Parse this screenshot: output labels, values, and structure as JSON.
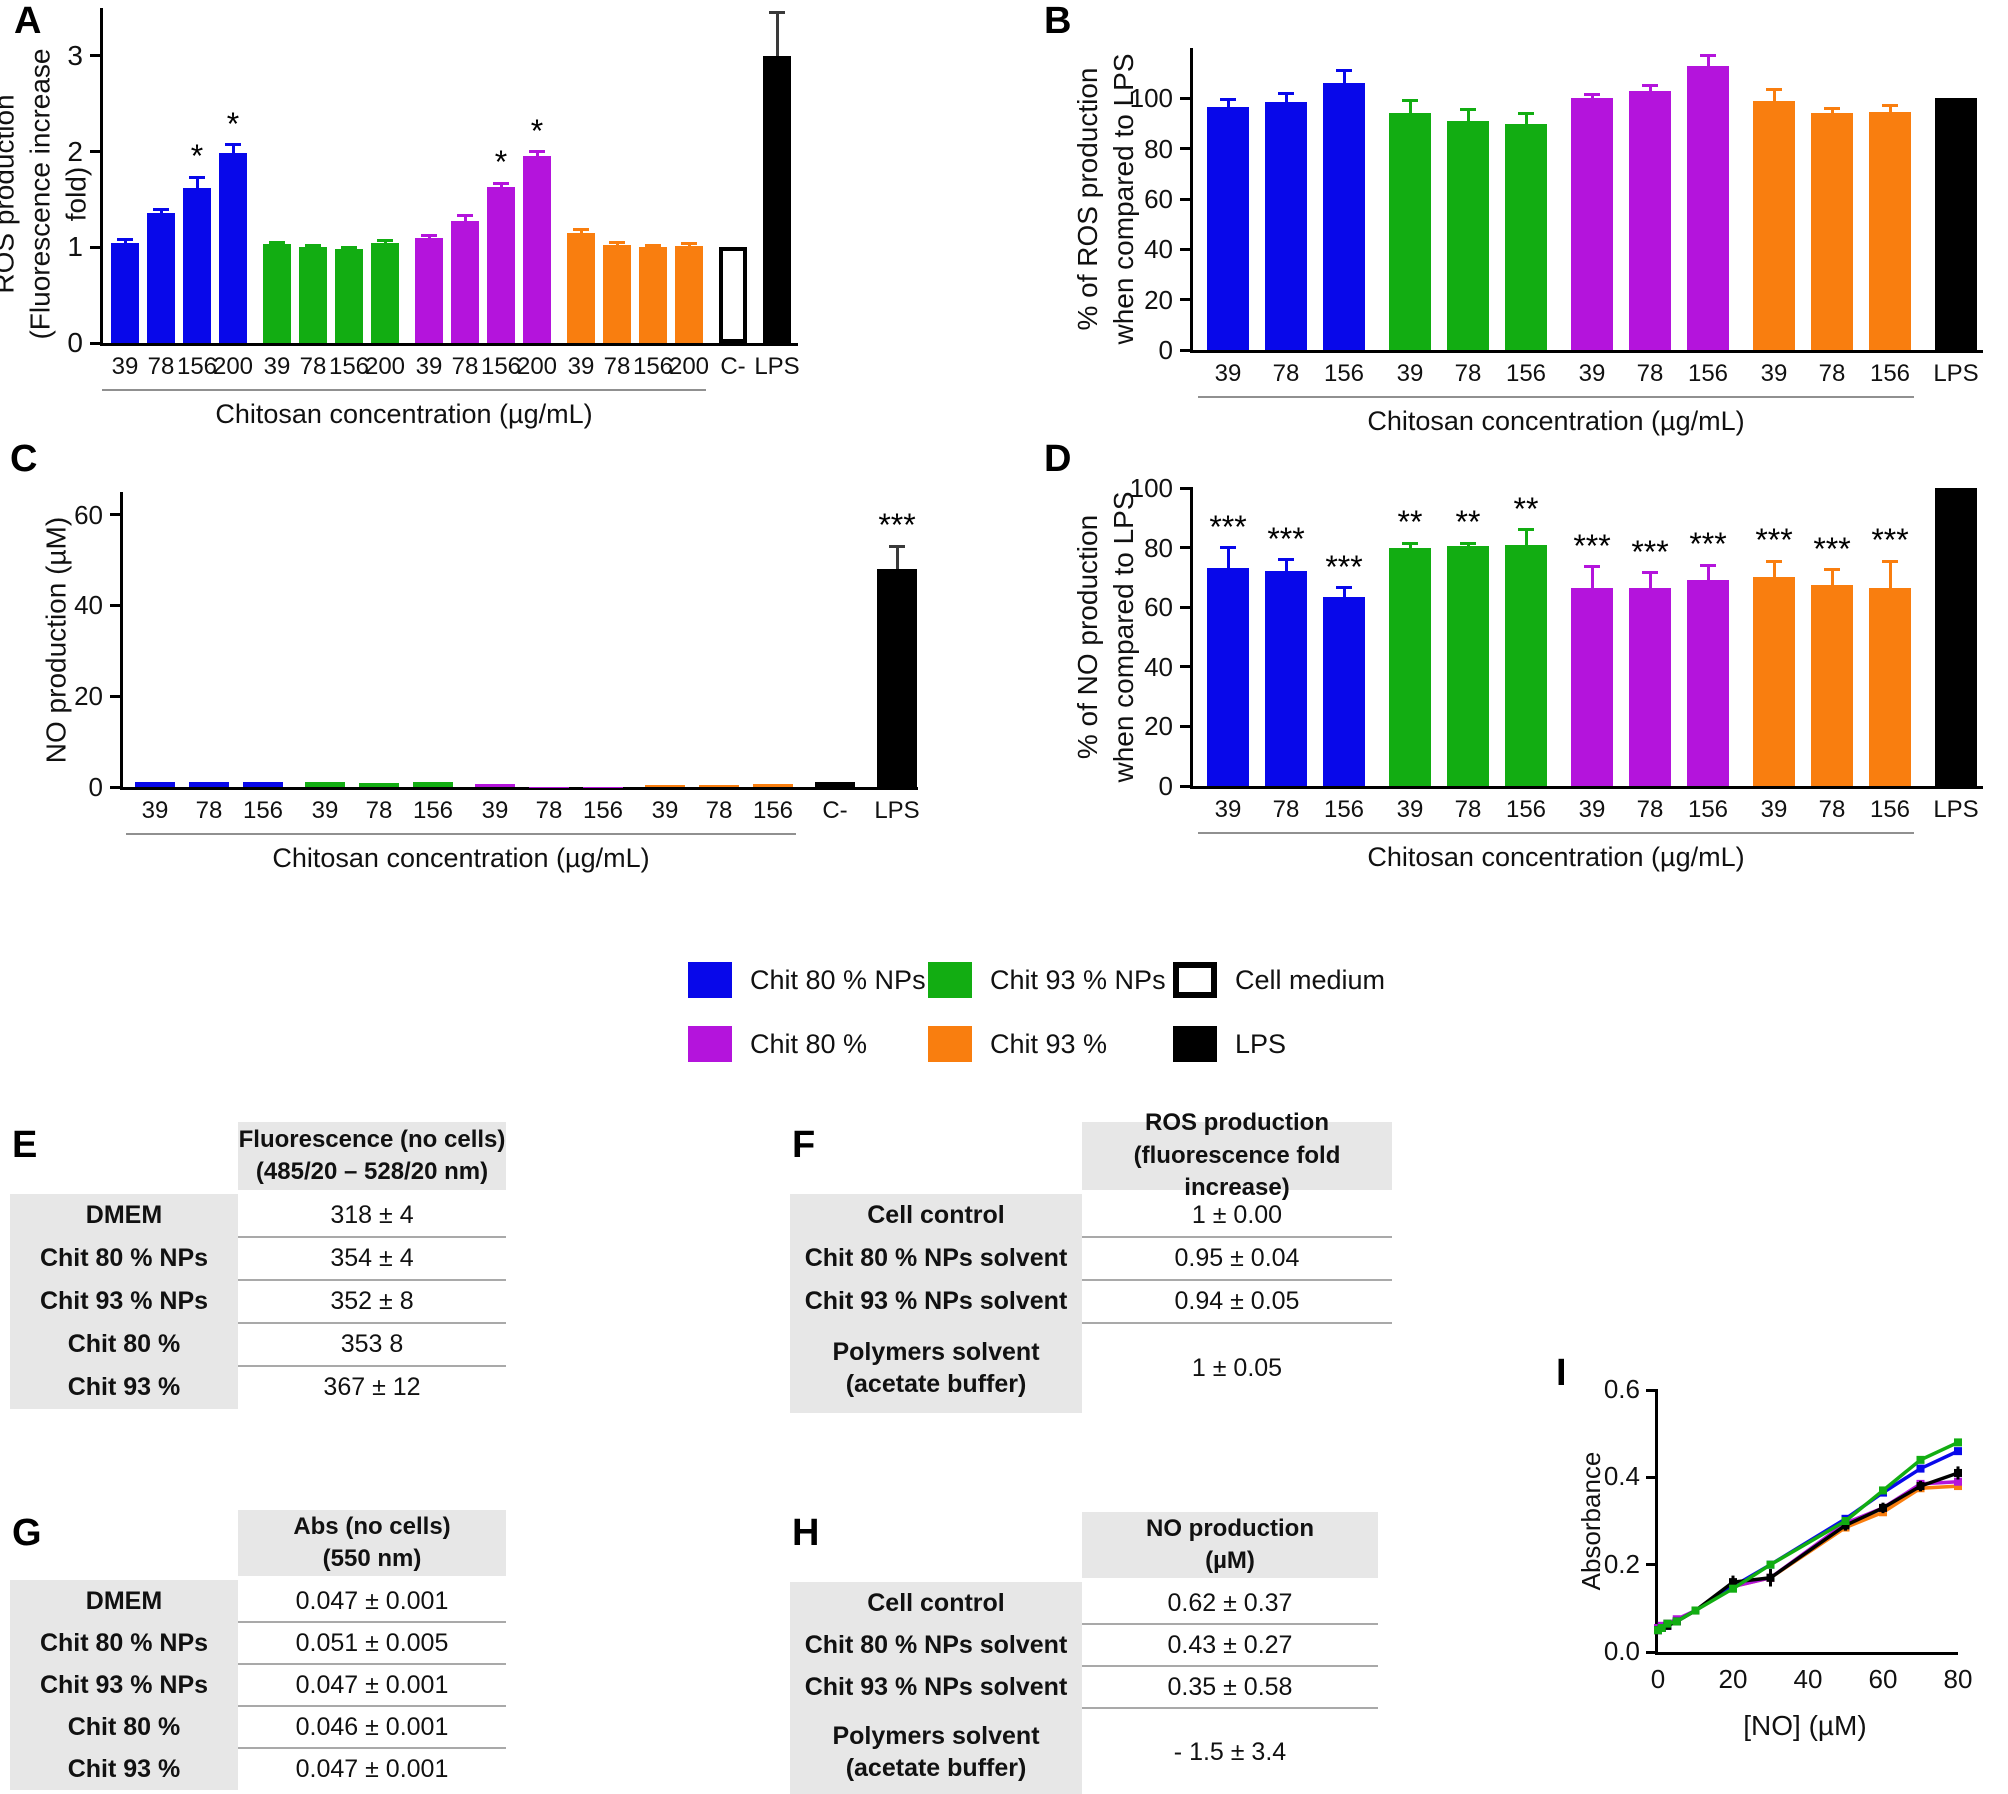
{
  "figure": {
    "panel_labels": {
      "A": "A",
      "B": "B",
      "C": "C",
      "D": "D",
      "E": "E",
      "F": "F",
      "G": "G",
      "H": "H",
      "I": "I"
    }
  },
  "colors": {
    "blue": "#0808ea",
    "green": "#12ad12",
    "magenta": "#b414dc",
    "orange": "#f97e0f",
    "black": "#000000",
    "white": "#ffffff",
    "err_on_black": "#3a3a3a",
    "table_header_bg": "#e7e7e7"
  },
  "legend": {
    "items": [
      {
        "label": "Chit 80 % NPs",
        "color": "blue",
        "outline": false
      },
      {
        "label": "Chit 93 % NPs",
        "color": "green",
        "outline": false
      },
      {
        "label": "Cell medium",
        "color": "white",
        "outline": true
      },
      {
        "label": "Chit 80 %",
        "color": "magenta",
        "outline": false
      },
      {
        "label": "Chit 93 %",
        "color": "orange",
        "outline": false
      },
      {
        "label": "LPS",
        "color": "black",
        "outline": false
      }
    ]
  },
  "chart_data": [
    {
      "panel": "A",
      "type": "bar",
      "ylabel": [
        "ROS production",
        "(Fluorescence increase fold)"
      ],
      "xlabel": "Chitosan concentration (µg/mL)",
      "ylim": [
        0,
        3.5
      ],
      "yticks": [
        0,
        1,
        2,
        3
      ],
      "groups": [
        {
          "name": "Chit 80 % NPs",
          "color": "blue",
          "underline": true,
          "bars": [
            {
              "x": "39",
              "y": 1.05,
              "err": 0.03
            },
            {
              "x": "78",
              "y": 1.36,
              "err": 0.04
            },
            {
              "x": "156",
              "y": 1.62,
              "err": 0.11,
              "sig": "*"
            },
            {
              "x": "200",
              "y": 1.99,
              "err": 0.08,
              "sig": "*"
            }
          ]
        },
        {
          "name": "Chit 93 % NPs",
          "color": "green",
          "underline": true,
          "bars": [
            {
              "x": "39",
              "y": 1.03,
              "err": 0.02
            },
            {
              "x": "78",
              "y": 1.0,
              "err": 0.02
            },
            {
              "x": "156",
              "y": 0.98,
              "err": 0.02
            },
            {
              "x": "200",
              "y": 1.04,
              "err": 0.03
            }
          ]
        },
        {
          "name": "Chit 80 %",
          "color": "magenta",
          "underline": true,
          "bars": [
            {
              "x": "39",
              "y": 1.1,
              "err": 0.02
            },
            {
              "x": "78",
              "y": 1.27,
              "err": 0.06
            },
            {
              "x": "156",
              "y": 1.63,
              "err": 0.04,
              "sig": "*"
            },
            {
              "x": "200",
              "y": 1.95,
              "err": 0.05,
              "sig": "*"
            }
          ]
        },
        {
          "name": "Chit 93 %",
          "color": "orange",
          "underline": true,
          "bars": [
            {
              "x": "39",
              "y": 1.15,
              "err": 0.04
            },
            {
              "x": "78",
              "y": 1.02,
              "err": 0.03
            },
            {
              "x": "156",
              "y": 1.0,
              "err": 0.02
            },
            {
              "x": "200",
              "y": 1.01,
              "err": 0.03
            }
          ]
        },
        {
          "name": "Cell medium",
          "color": "white",
          "underline": false,
          "bars": [
            {
              "x": "C-",
              "y": 1.0
            }
          ]
        },
        {
          "name": "LPS",
          "color": "black",
          "underline": false,
          "bars": [
            {
              "x": "LPS",
              "y": 3.0,
              "err": 0.45
            }
          ]
        }
      ]
    },
    {
      "panel": "B",
      "type": "bar",
      "ylabel": [
        "% of ROS production",
        "when compared to LPS"
      ],
      "xlabel": "Chitosan concentration (µg/mL)",
      "ylim": [
        0,
        120
      ],
      "yticks": [
        0,
        20,
        40,
        60,
        80,
        100
      ],
      "groups": [
        {
          "name": "Chit 80 % NPs",
          "color": "blue",
          "underline": true,
          "bars": [
            {
              "x": "39",
              "y": 96.5,
              "err": 3
            },
            {
              "x": "78",
              "y": 98.5,
              "err": 3.5
            },
            {
              "x": "156",
              "y": 106,
              "err": 5
            }
          ]
        },
        {
          "name": "Chit 93 % NPs",
          "color": "green",
          "underline": true,
          "bars": [
            {
              "x": "39",
              "y": 94,
              "err": 5
            },
            {
              "x": "78",
              "y": 91,
              "err": 4.5
            },
            {
              "x": "156",
              "y": 90,
              "err": 4
            }
          ]
        },
        {
          "name": "Chit 80 %",
          "color": "magenta",
          "underline": true,
          "bars": [
            {
              "x": "39",
              "y": 100,
              "err": 1.5
            },
            {
              "x": "78",
              "y": 103,
              "err": 2
            },
            {
              "x": "156",
              "y": 113,
              "err": 4
            }
          ]
        },
        {
          "name": "Chit 93 %",
          "color": "orange",
          "underline": true,
          "bars": [
            {
              "x": "39",
              "y": 99,
              "err": 4.5
            },
            {
              "x": "78",
              "y": 94,
              "err": 2
            },
            {
              "x": "156",
              "y": 94.5,
              "err": 2.5
            }
          ]
        },
        {
          "name": "LPS",
          "color": "black",
          "underline": false,
          "bars": [
            {
              "x": "LPS",
              "y": 100
            }
          ]
        }
      ]
    },
    {
      "panel": "C",
      "type": "bar",
      "ylabel": [
        "NO production (µM)"
      ],
      "xlabel": "Chitosan concentration (µg/mL)",
      "ylim": [
        0,
        65
      ],
      "yticks": [
        0,
        20,
        40,
        60
      ],
      "groups": [
        {
          "name": "Chit 80 % NPs",
          "color": "blue",
          "underline": true,
          "bars": [
            {
              "x": "39",
              "y": 1.2
            },
            {
              "x": "78",
              "y": 1.1
            },
            {
              "x": "156",
              "y": 1.2
            }
          ]
        },
        {
          "name": "Chit 93 % NPs",
          "color": "green",
          "underline": true,
          "bars": [
            {
              "x": "39",
              "y": 1.1
            },
            {
              "x": "78",
              "y": 0.9
            },
            {
              "x": "156",
              "y": 1.1
            }
          ]
        },
        {
          "name": "Chit 80 %",
          "color": "magenta",
          "underline": true,
          "bars": [
            {
              "x": "39",
              "y": 0.6
            },
            {
              "x": "78",
              "y": 0.1
            },
            {
              "x": "156",
              "y": 0.1
            }
          ]
        },
        {
          "name": "Chit 93 %",
          "color": "orange",
          "underline": true,
          "bars": [
            {
              "x": "39",
              "y": 0.5
            },
            {
              "x": "78",
              "y": 0.5
            },
            {
              "x": "156",
              "y": 0.6
            }
          ]
        },
        {
          "name": "C-",
          "color": "black",
          "underline": false,
          "bars": [
            {
              "x": "C-",
              "y": 1.0
            }
          ]
        },
        {
          "name": "LPS",
          "color": "black",
          "underline": false,
          "bars": [
            {
              "x": "LPS",
              "y": 48,
              "err": 5,
              "sig": "***"
            }
          ]
        }
      ]
    },
    {
      "panel": "D",
      "type": "bar",
      "ylabel": [
        "% of NO production",
        "when compared to LPS"
      ],
      "xlabel": "Chitosan concentration (µg/mL)",
      "ylim": [
        0,
        100
      ],
      "yticks": [
        0,
        20,
        40,
        60,
        80,
        100
      ],
      "groups": [
        {
          "name": "Chit 80 % NPs",
          "color": "blue",
          "underline": true,
          "bars": [
            {
              "x": "39",
              "y": 73,
              "err": 7,
              "sig": "***"
            },
            {
              "x": "78",
              "y": 72,
              "err": 4,
              "sig": "***"
            },
            {
              "x": "156",
              "y": 63.5,
              "err": 3,
              "sig": "***"
            }
          ]
        },
        {
          "name": "Chit 93 % NPs",
          "color": "green",
          "underline": true,
          "bars": [
            {
              "x": "39",
              "y": 80,
              "err": 1.5,
              "sig": "**"
            },
            {
              "x": "78",
              "y": 80.5,
              "err": 1,
              "sig": "**"
            },
            {
              "x": "156",
              "y": 81,
              "err": 5,
              "sig": "**"
            }
          ]
        },
        {
          "name": "Chit 80 %",
          "color": "magenta",
          "underline": true,
          "bars": [
            {
              "x": "39",
              "y": 66.5,
              "err": 7,
              "sig": "***"
            },
            {
              "x": "78",
              "y": 66.5,
              "err": 5,
              "sig": "***"
            },
            {
              "x": "156",
              "y": 69,
              "err": 5,
              "sig": "***"
            }
          ]
        },
        {
          "name": "Chit 93 %",
          "color": "orange",
          "underline": true,
          "bars": [
            {
              "x": "39",
              "y": 70,
              "err": 5.5,
              "sig": "***"
            },
            {
              "x": "78",
              "y": 67.5,
              "err": 5,
              "sig": "***"
            },
            {
              "x": "156",
              "y": 66.5,
              "err": 9,
              "sig": "***"
            }
          ]
        },
        {
          "name": "LPS",
          "color": "black",
          "underline": false,
          "bars": [
            {
              "x": "LPS",
              "y": 100
            }
          ]
        }
      ]
    },
    {
      "panel": "E",
      "type": "table",
      "header": [
        "Fluorescence (no cells)",
        "(485/20 – 528/20 nm)"
      ],
      "rows": [
        [
          "DMEM",
          "318 ± 4"
        ],
        [
          "Chit 80 % NPs",
          "354 ± 4"
        ],
        [
          "Chit 93 % NPs",
          "352 ± 8"
        ],
        [
          "Chit 80 %",
          "353 8"
        ],
        [
          "Chit 93 %",
          "367 ± 12"
        ]
      ]
    },
    {
      "panel": "F",
      "type": "table",
      "header": [
        "ROS production",
        "(fluorescence fold increase)"
      ],
      "rows": [
        [
          "Cell control",
          "1 ± 0.00"
        ],
        [
          "Chit 80 % NPs solvent",
          "0.95 ± 0.04"
        ],
        [
          "Chit 93 % NPs solvent",
          "0.94 ± 0.05"
        ],
        [
          [
            "Polymers solvent",
            "(acetate buffer)"
          ],
          "1 ± 0.05"
        ]
      ]
    },
    {
      "panel": "G",
      "type": "table",
      "header": [
        "Abs (no cells)",
        "(550 nm)"
      ],
      "rows": [
        [
          "DMEM",
          "0.047 ± 0.001"
        ],
        [
          "Chit 80 % NPs",
          "0.051 ± 0.005"
        ],
        [
          "Chit 93 % NPs",
          "0.047 ± 0.001"
        ],
        [
          "Chit 80 %",
          "0.046 ± 0.001"
        ],
        [
          "Chit 93 %",
          "0.047 ± 0.001"
        ]
      ]
    },
    {
      "panel": "H",
      "type": "table",
      "header": [
        "NO production",
        "(µM)"
      ],
      "rows": [
        [
          "Cell control",
          "0.62 ± 0.37"
        ],
        [
          "Chit 80 % NPs solvent",
          "0.43 ± 0.27"
        ],
        [
          "Chit 93 % NPs solvent",
          "0.35 ± 0.58"
        ],
        [
          [
            "Polymers solvent",
            "(acetate buffer)"
          ],
          "- 1.5 ± 3.4"
        ]
      ]
    },
    {
      "panel": "I",
      "type": "line",
      "ylabel": [
        "Absorbance"
      ],
      "xlabel": "[NO] (µM)",
      "xlim": [
        0,
        80
      ],
      "xticks": [
        0,
        20,
        40,
        60,
        80
      ],
      "ylim": [
        0,
        0.6
      ],
      "yticks": [
        "0.0",
        "0.2",
        "0.4",
        "0.6"
      ],
      "x": [
        0,
        1,
        2.5,
        5,
        10,
        20,
        30,
        50,
        60,
        70,
        80
      ],
      "series": [
        {
          "name": "Chit 80 % NPs",
          "color": "blue",
          "values": [
            0.05,
            0.055,
            0.06,
            0.07,
            0.095,
            0.15,
            0.2,
            0.305,
            0.365,
            0.42,
            0.46
          ]
        },
        {
          "name": "Chit 93 % NPs",
          "color": "green",
          "values": [
            0.05,
            0.055,
            0.065,
            0.07,
            0.095,
            0.145,
            0.2,
            0.3,
            0.37,
            0.44,
            0.48
          ]
        },
        {
          "name": "Chit 80 %",
          "color": "magenta",
          "values": [
            0.055,
            0.06,
            0.065,
            0.075,
            0.095,
            0.15,
            0.17,
            0.295,
            0.33,
            0.385,
            0.39
          ]
        },
        {
          "name": "Chit 93 %",
          "color": "orange",
          "values": [
            0.05,
            0.055,
            0.06,
            0.07,
            0.095,
            0.15,
            0.17,
            0.285,
            0.32,
            0.375,
            0.38
          ]
        },
        {
          "name": "LPS",
          "color": "black",
          "values": [
            0.05,
            0.055,
            0.06,
            0.07,
            0.095,
            0.16,
            0.17,
            0.29,
            0.33,
            0.38,
            0.41
          ],
          "err": [
            0,
            0,
            0,
            0,
            0,
            0.015,
            0.02,
            0.012,
            0.012,
            0.012,
            0.015
          ]
        }
      ]
    }
  ]
}
